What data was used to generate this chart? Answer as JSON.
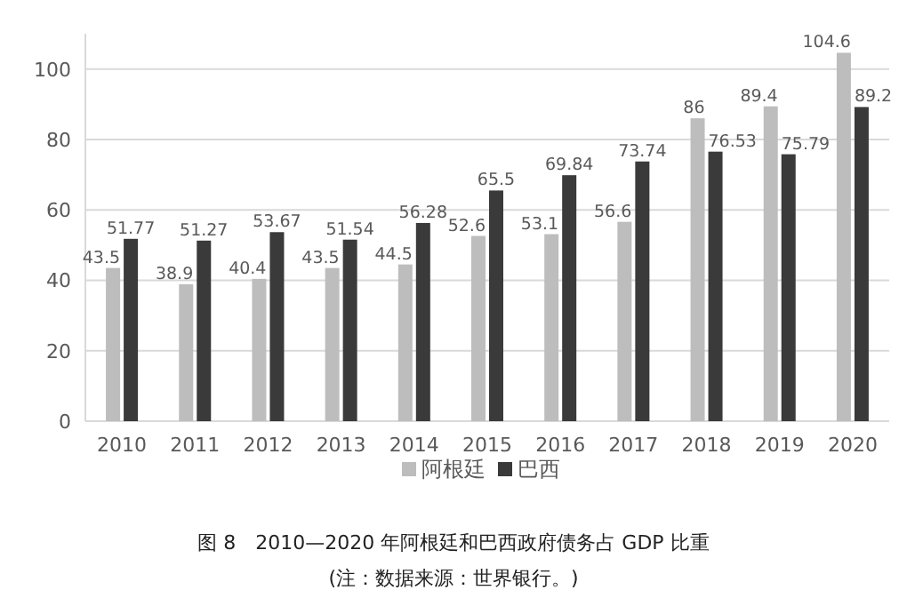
{
  "chart_data": {
    "type": "bar",
    "categories": [
      "2010",
      "2011",
      "2012",
      "2013",
      "2014",
      "2015",
      "2016",
      "2017",
      "2018",
      "2019",
      "2020"
    ],
    "series": [
      {
        "name": "阿根廷",
        "color": "#bdbdbd",
        "values": [
          43.5,
          38.9,
          40.4,
          43.5,
          44.5,
          52.6,
          53.1,
          56.6,
          86,
          89.4,
          104.6
        ]
      },
      {
        "name": "巴西",
        "color": "#3a3a3a",
        "values": [
          51.77,
          51.27,
          53.67,
          51.54,
          56.28,
          65.5,
          69.84,
          73.74,
          76.53,
          75.79,
          89.2
        ]
      }
    ],
    "ylim": [
      0,
      110
    ],
    "yticks": [
      0,
      20,
      40,
      60,
      80,
      100
    ],
    "grid": "y",
    "legend": "bottom",
    "data_labels": true,
    "annotations": [
      "图 8　2010—2020 年阿根廷和巴西政府债务占 GDP 比重",
      "(注：数据来源：世界银行。)"
    ]
  }
}
